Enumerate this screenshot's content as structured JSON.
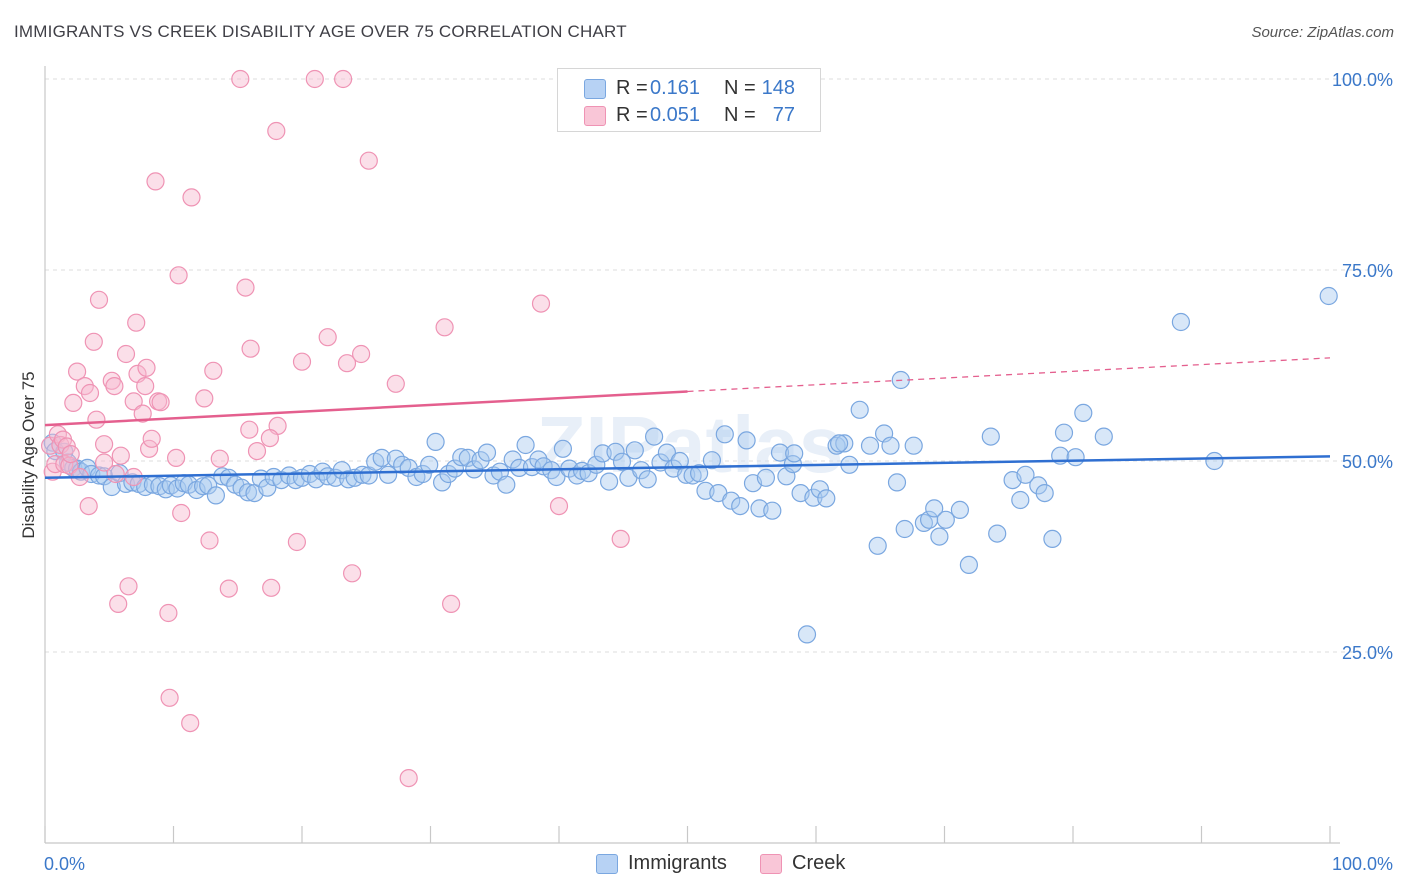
{
  "title": "IMMIGRANTS VS CREEK DISABILITY AGE OVER 75 CORRELATION CHART",
  "source": "Source: ZipAtlas.com",
  "watermark": "ZIPatlas",
  "legend": {
    "rows": [
      {
        "r_label": "R =",
        "r_value": "0.161",
        "n_label": "N =",
        "n_value": "148"
      },
      {
        "r_label": "R =",
        "r_value": "0.051",
        "n_label": "N =",
        "n_value": "77"
      }
    ]
  },
  "bottom_legend": [
    "Immigrants",
    "Creek"
  ],
  "colors": {
    "immigrants_fill": "#a9c9f0",
    "immigrants_stroke": "#7aa7e0",
    "immigrants_line": "#2f6fd1",
    "creek_fill": "#f7b9cf",
    "creek_stroke": "#ef93b4",
    "creek_line": "#e45f8e",
    "tick_label": "#3b78c9",
    "grid": "#dcdcdc"
  },
  "chart_data": {
    "type": "scatter",
    "title": "IMMIGRANTS VS CREEK DISABILITY AGE OVER 75 CORRELATION CHART",
    "xlabel": "",
    "ylabel": "Disability Age Over 75",
    "xlim": [
      0,
      100
    ],
    "ylim": [
      0,
      105
    ],
    "x_tick_labels": [
      "0.0%",
      "100.0%"
    ],
    "y_ticks": [
      25,
      50,
      75,
      100
    ],
    "y_tick_labels": [
      "25.0%",
      "50.0%",
      "75.0%",
      "100.0%"
    ],
    "grid": "horizontal dashed",
    "legend_position": "top-center",
    "series": [
      {
        "name": "Immigrants",
        "r": 0.161,
        "n": 148,
        "trend": {
          "x": [
            0,
            100
          ],
          "y": [
            47.8,
            50.6
          ],
          "dashed_from": null
        },
        "points": [
          [
            0.6,
            52.4
          ],
          [
            0.8,
            51.3
          ],
          [
            1.5,
            51.2
          ],
          [
            1.8,
            49.8
          ],
          [
            2.2,
            49.1
          ],
          [
            2.5,
            49.0
          ],
          [
            2.8,
            48.6
          ],
          [
            3.3,
            49.1
          ],
          [
            3.6,
            48.3
          ],
          [
            4.2,
            48.1
          ],
          [
            4.6,
            48.0
          ],
          [
            5.2,
            46.6
          ],
          [
            5.8,
            48.4
          ],
          [
            6.3,
            47.0
          ],
          [
            6.8,
            47.2
          ],
          [
            7.3,
            47.0
          ],
          [
            7.8,
            46.6
          ],
          [
            8.4,
            46.9
          ],
          [
            8.9,
            46.7
          ],
          [
            9.4,
            46.3
          ],
          [
            9.8,
            46.8
          ],
          [
            10.3,
            46.4
          ],
          [
            10.8,
            47.1
          ],
          [
            11.2,
            46.9
          ],
          [
            11.8,
            46.2
          ],
          [
            12.3,
            46.7
          ],
          [
            12.7,
            46.8
          ],
          [
            13.3,
            45.5
          ],
          [
            13.8,
            48.0
          ],
          [
            14.3,
            47.8
          ],
          [
            14.8,
            46.9
          ],
          [
            15.3,
            46.5
          ],
          [
            15.8,
            45.9
          ],
          [
            16.3,
            45.8
          ],
          [
            16.8,
            47.7
          ],
          [
            17.3,
            46.5
          ],
          [
            17.8,
            47.9
          ],
          [
            18.4,
            47.5
          ],
          [
            19.0,
            48.1
          ],
          [
            19.5,
            47.5
          ],
          [
            20.0,
            47.8
          ],
          [
            20.6,
            48.3
          ],
          [
            21.1,
            47.6
          ],
          [
            21.6,
            48.6
          ],
          [
            22.0,
            48.0
          ],
          [
            22.6,
            47.8
          ],
          [
            23.1,
            48.8
          ],
          [
            23.6,
            47.6
          ],
          [
            24.1,
            47.8
          ],
          [
            24.7,
            48.2
          ],
          [
            25.2,
            48.1
          ],
          [
            25.7,
            49.9
          ],
          [
            26.2,
            50.4
          ],
          [
            26.7,
            48.2
          ],
          [
            27.3,
            50.3
          ],
          [
            27.8,
            49.5
          ],
          [
            28.3,
            49.1
          ],
          [
            28.9,
            47.9
          ],
          [
            29.4,
            48.3
          ],
          [
            29.9,
            49.5
          ],
          [
            30.4,
            52.5
          ],
          [
            30.9,
            47.2
          ],
          [
            31.4,
            48.3
          ],
          [
            31.9,
            49.0
          ],
          [
            32.4,
            50.5
          ],
          [
            32.9,
            50.4
          ],
          [
            33.4,
            48.9
          ],
          [
            33.9,
            50.1
          ],
          [
            34.4,
            51.1
          ],
          [
            34.9,
            48.1
          ],
          [
            35.4,
            48.6
          ],
          [
            35.9,
            46.9
          ],
          [
            36.4,
            50.2
          ],
          [
            36.9,
            49.1
          ],
          [
            37.4,
            52.1
          ],
          [
            37.9,
            49.2
          ],
          [
            38.4,
            50.2
          ],
          [
            38.8,
            49.3
          ],
          [
            39.4,
            48.8
          ],
          [
            39.8,
            47.9
          ],
          [
            40.3,
            51.6
          ],
          [
            40.8,
            49.0
          ],
          [
            41.4,
            48.1
          ],
          [
            41.8,
            48.7
          ],
          [
            42.3,
            48.4
          ],
          [
            42.9,
            49.5
          ],
          [
            43.4,
            51.0
          ],
          [
            43.9,
            47.3
          ],
          [
            44.4,
            51.2
          ],
          [
            44.9,
            49.9
          ],
          [
            45.4,
            47.8
          ],
          [
            45.9,
            51.4
          ],
          [
            46.4,
            48.8
          ],
          [
            46.9,
            47.6
          ],
          [
            47.4,
            53.2
          ],
          [
            47.9,
            49.8
          ],
          [
            48.4,
            51.1
          ],
          [
            48.9,
            49.0
          ],
          [
            49.4,
            50.0
          ],
          [
            49.9,
            48.2
          ],
          [
            50.4,
            48.1
          ],
          [
            50.9,
            48.4
          ],
          [
            51.4,
            46.1
          ],
          [
            51.9,
            50.1
          ],
          [
            52.4,
            45.8
          ],
          [
            52.9,
            53.5
          ],
          [
            53.4,
            44.8
          ],
          [
            54.1,
            44.1
          ],
          [
            54.6,
            52.7
          ],
          [
            55.1,
            47.1
          ],
          [
            55.6,
            43.8
          ],
          [
            56.1,
            47.8
          ],
          [
            56.6,
            43.5
          ],
          [
            57.2,
            51.1
          ],
          [
            57.7,
            48.0
          ],
          [
            58.2,
            49.6
          ],
          [
            58.8,
            45.8
          ],
          [
            59.3,
            27.3
          ],
          [
            59.8,
            45.2
          ],
          [
            60.3,
            46.3
          ],
          [
            60.8,
            45.1
          ],
          [
            61.6,
            52.0
          ],
          [
            62.2,
            52.3
          ],
          [
            62.6,
            49.5
          ],
          [
            63.4,
            56.7
          ],
          [
            64.2,
            52.0
          ],
          [
            64.8,
            38.9
          ],
          [
            65.3,
            53.6
          ],
          [
            65.8,
            52.0
          ],
          [
            66.3,
            47.2
          ],
          [
            66.6,
            60.6
          ],
          [
            66.9,
            41.1
          ],
          [
            67.6,
            52.0
          ],
          [
            68.4,
            41.9
          ],
          [
            68.8,
            42.3
          ],
          [
            69.2,
            43.8
          ],
          [
            69.6,
            40.1
          ],
          [
            70.1,
            42.3
          ],
          [
            71.2,
            43.6
          ],
          [
            71.9,
            36.4
          ],
          [
            73.6,
            53.2
          ],
          [
            74.1,
            40.5
          ],
          [
            75.3,
            47.5
          ],
          [
            75.9,
            44.9
          ],
          [
            76.3,
            48.2
          ],
          [
            77.3,
            46.8
          ],
          [
            77.8,
            45.8
          ],
          [
            78.4,
            39.8
          ],
          [
            79.0,
            50.7
          ],
          [
            79.3,
            53.7
          ],
          [
            80.2,
            50.5
          ],
          [
            80.8,
            56.3
          ],
          [
            82.4,
            53.2
          ],
          [
            88.4,
            68.2
          ],
          [
            91.0,
            50.0
          ],
          [
            99.9,
            71.6
          ],
          [
            58.3,
            51.0
          ],
          [
            61.8,
            52.3
          ]
        ]
      },
      {
        "name": "Creek",
        "r": 0.051,
        "n": 77,
        "trend": {
          "x": [
            0,
            100
          ],
          "y": [
            54.7,
            63.5
          ],
          "dashed_from": 50
        },
        "points": [
          [
            0.4,
            52.0
          ],
          [
            0.6,
            48.6
          ],
          [
            0.8,
            49.6
          ],
          [
            1.0,
            53.5
          ],
          [
            1.2,
            52.1
          ],
          [
            1.4,
            52.8
          ],
          [
            1.5,
            49.6
          ],
          [
            1.7,
            51.9
          ],
          [
            1.9,
            49.4
          ],
          [
            2.0,
            50.9
          ],
          [
            2.2,
            57.6
          ],
          [
            2.5,
            61.7
          ],
          [
            2.7,
            47.9
          ],
          [
            3.1,
            59.8
          ],
          [
            3.4,
            44.1
          ],
          [
            3.5,
            58.9
          ],
          [
            3.8,
            65.6
          ],
          [
            4.0,
            55.4
          ],
          [
            4.2,
            71.1
          ],
          [
            4.6,
            49.8
          ],
          [
            4.6,
            52.2
          ],
          [
            5.2,
            60.5
          ],
          [
            5.4,
            59.8
          ],
          [
            5.5,
            48.3
          ],
          [
            5.7,
            31.3
          ],
          [
            5.9,
            50.7
          ],
          [
            6.3,
            64.0
          ],
          [
            6.5,
            33.6
          ],
          [
            6.9,
            47.9
          ],
          [
            6.9,
            57.8
          ],
          [
            7.1,
            68.1
          ],
          [
            7.2,
            61.4
          ],
          [
            7.6,
            56.2
          ],
          [
            7.8,
            59.8
          ],
          [
            7.9,
            62.2
          ],
          [
            8.1,
            51.6
          ],
          [
            8.3,
            52.9
          ],
          [
            8.6,
            86.6
          ],
          [
            8.8,
            57.8
          ],
          [
            9.0,
            57.7
          ],
          [
            9.6,
            30.1
          ],
          [
            9.7,
            19.0
          ],
          [
            10.2,
            50.4
          ],
          [
            10.4,
            74.3
          ],
          [
            10.6,
            43.2
          ],
          [
            11.4,
            84.5
          ],
          [
            11.3,
            15.7
          ],
          [
            12.4,
            58.2
          ],
          [
            12.8,
            39.6
          ],
          [
            13.1,
            61.8
          ],
          [
            13.6,
            50.3
          ],
          [
            14.3,
            33.3
          ],
          [
            15.2,
            100.0
          ],
          [
            15.6,
            72.7
          ],
          [
            15.9,
            54.1
          ],
          [
            16.0,
            64.7
          ],
          [
            16.5,
            51.3
          ],
          [
            17.6,
            33.4
          ],
          [
            18.0,
            93.2
          ],
          [
            18.1,
            54.6
          ],
          [
            19.6,
            39.4
          ],
          [
            20.0,
            63.0
          ],
          [
            21.0,
            100.0
          ],
          [
            22.0,
            66.2
          ],
          [
            23.2,
            100.0
          ],
          [
            23.5,
            62.8
          ],
          [
            23.9,
            35.3
          ],
          [
            24.6,
            64.0
          ],
          [
            25.2,
            89.3
          ],
          [
            27.3,
            60.1
          ],
          [
            28.3,
            8.5
          ],
          [
            31.1,
            67.5
          ],
          [
            31.6,
            31.3
          ],
          [
            38.6,
            70.6
          ],
          [
            40.0,
            44.1
          ],
          [
            44.8,
            39.8
          ],
          [
            17.5,
            53.0
          ]
        ]
      }
    ]
  }
}
